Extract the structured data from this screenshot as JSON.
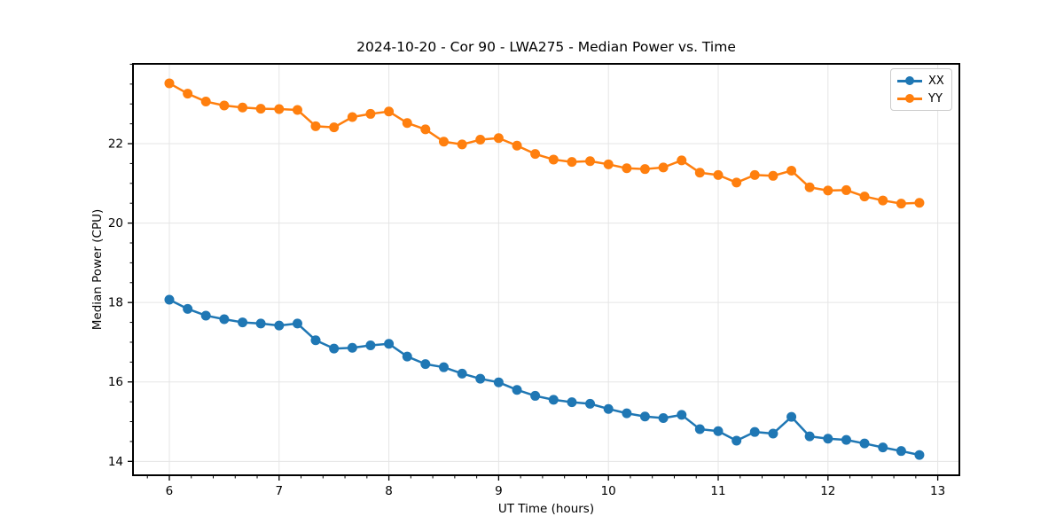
{
  "figure": {
    "title": "2024-10-20 - Cor 90 - LWA275 - Median Power vs. Time",
    "xlabel": "UT Time (hours)",
    "ylabel": "Median Power (CPU)"
  },
  "chart_data": {
    "type": "line",
    "title": "2024-10-20 - Cor 90 - LWA275 - Median Power vs. Time",
    "xlabel": "UT Time (hours)",
    "ylabel": "Median Power (CPU)",
    "x": [
      6.0,
      6.167,
      6.333,
      6.5,
      6.667,
      6.833,
      7.0,
      7.167,
      7.333,
      7.5,
      7.667,
      7.833,
      8.0,
      8.167,
      8.333,
      8.5,
      8.667,
      8.833,
      9.0,
      9.167,
      9.333,
      9.5,
      9.667,
      9.833,
      10.0,
      10.167,
      10.333,
      10.5,
      10.667,
      10.833,
      11.0,
      11.167,
      11.333,
      11.5,
      11.667,
      11.833,
      12.0,
      12.167,
      12.333,
      12.5,
      12.667,
      12.833
    ],
    "series": [
      {
        "name": "XX",
        "color": "#1f77b4",
        "values": [
          18.07,
          17.84,
          17.67,
          17.58,
          17.5,
          17.47,
          17.42,
          17.47,
          17.05,
          16.84,
          16.86,
          16.92,
          16.96,
          16.64,
          16.45,
          16.37,
          16.21,
          16.08,
          15.99,
          15.8,
          15.65,
          15.55,
          15.49,
          15.45,
          15.32,
          15.21,
          15.13,
          15.09,
          15.17,
          14.81,
          14.76,
          14.52,
          14.74,
          14.7,
          15.12,
          14.63,
          14.57,
          14.54,
          14.45,
          14.35,
          14.26,
          14.16
        ]
      },
      {
        "name": "YY",
        "color": "#ff7f0e",
        "values": [
          23.52,
          23.26,
          23.06,
          22.96,
          22.91,
          22.88,
          22.87,
          22.85,
          22.44,
          22.41,
          22.67,
          22.75,
          22.81,
          22.52,
          22.36,
          22.05,
          21.98,
          22.1,
          22.14,
          21.95,
          21.74,
          21.6,
          21.54,
          21.56,
          21.48,
          21.38,
          21.36,
          21.4,
          21.58,
          21.27,
          21.21,
          21.02,
          21.21,
          21.19,
          21.32,
          20.9,
          20.82,
          20.83,
          20.67,
          20.57,
          20.49,
          20.51
        ]
      }
    ],
    "xlim": [
      5.669,
      13.197
    ],
    "ylim": [
      13.65,
      24.01
    ],
    "xticks": [
      6,
      7,
      8,
      9,
      10,
      11,
      12,
      13
    ],
    "yticks": [
      14,
      16,
      18,
      20,
      22
    ],
    "x_minor_step": 0.2,
    "y_minor_step": 0.5,
    "grid": true,
    "grid_color": "#e5e5e5",
    "spine_color": "#000000",
    "legend_position": "upper right",
    "marker": "o",
    "marker_radius": 5.5,
    "line_width": 2.5
  }
}
